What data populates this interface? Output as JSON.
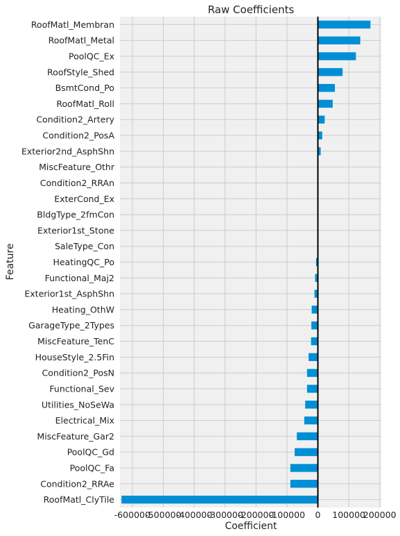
{
  "chart_data": {
    "type": "bar",
    "orientation": "horizontal",
    "title": "Raw Coefficients",
    "xlabel": "Coefficient",
    "ylabel": "Feature",
    "xlim": [
      -640000,
      205000
    ],
    "xticks": [
      -600000,
      -500000,
      -400000,
      -300000,
      -200000,
      -100000,
      0,
      100000,
      200000
    ],
    "xtick_labels": [
      "-600000",
      "-500000",
      "-400000",
      "-300000",
      "-200000",
      "-100000",
      "0",
      "100000",
      "200000"
    ],
    "grid": true,
    "bar_color": "#008fd5",
    "background": "#f0f0f0",
    "categories": [
      "RoofMatl_Membran",
      "RoofMatl_Metal",
      "PoolQC_Ex",
      "RoofStyle_Shed",
      "BsmtCond_Po",
      "RoofMatl_Roll",
      "Condition2_Artery",
      "Condition2_PosA",
      "Exterior2nd_AsphShn",
      "MiscFeature_Othr",
      "Condition2_RRAn",
      "ExterCond_Ex",
      "BldgType_2fmCon",
      "Exterior1st_Stone",
      "SaleType_Con",
      "HeatingQC_Po",
      "Functional_Maj2",
      "Exterior1st_AsphShn",
      "Heating_OthW",
      "GarageType_2Types",
      "MiscFeature_TenC",
      "HouseStyle_2.5Fin",
      "Condition2_PosN",
      "Functional_Sev",
      "Utilities_NoSeWa",
      "Electrical_Mix",
      "MiscFeature_Gar2",
      "PoolQC_Gd",
      "PoolQC_Fa",
      "Condition2_RRAe",
      "RoofMatl_ClyTile"
    ],
    "values": [
      170000,
      137000,
      123000,
      80000,
      55000,
      48000,
      22000,
      14000,
      9000,
      0,
      0,
      0,
      0,
      0,
      0,
      -6000,
      -9000,
      -11000,
      -20000,
      -21000,
      -22000,
      -30000,
      -35000,
      -35000,
      -41000,
      -44000,
      -68000,
      -75000,
      -89000,
      -89000,
      -635000
    ]
  }
}
